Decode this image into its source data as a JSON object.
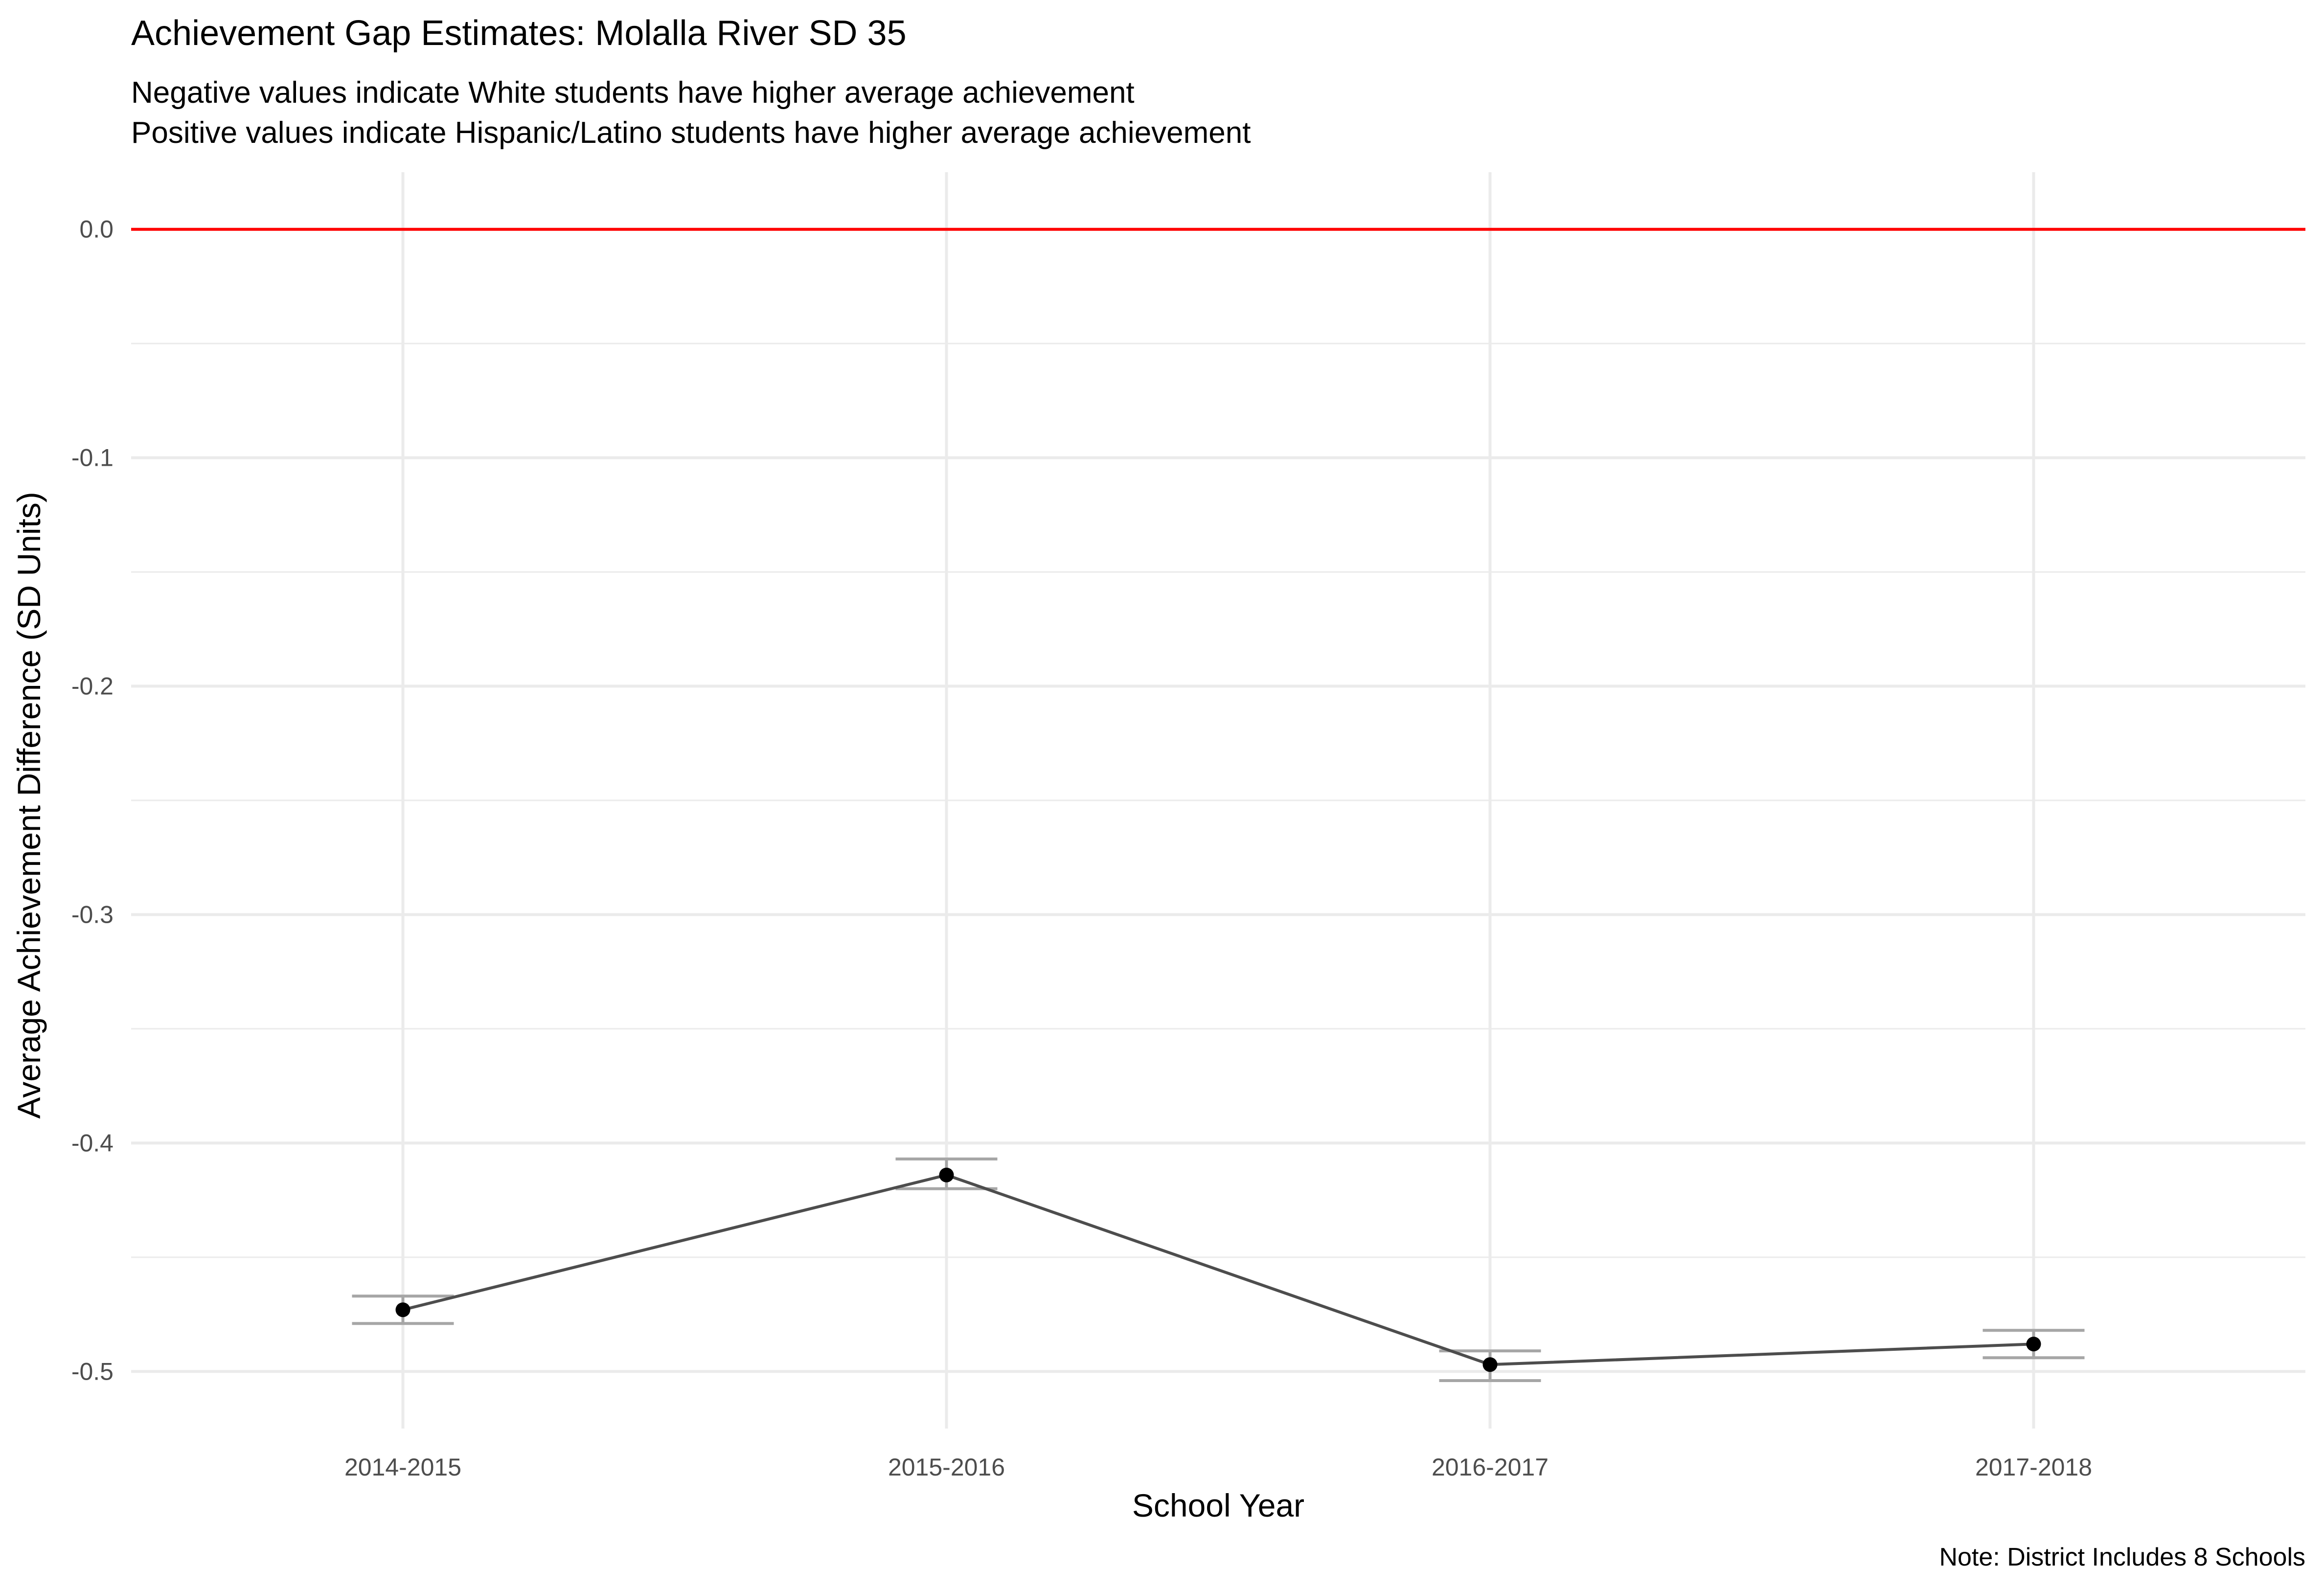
{
  "chart_data": {
    "type": "line",
    "title": "Achievement Gap Estimates: Molalla River SD 35",
    "subtitle_lines": [
      "Negative values indicate White students have higher average achievement",
      "Positive values indicate Hispanic/Latino students have higher average achievement"
    ],
    "xlabel": "School Year",
    "ylabel": "Average Achievement Difference (SD Units)",
    "caption": "Note: District Includes 8 Schools",
    "categories": [
      "2014-2015",
      "2015-2016",
      "2016-2017",
      "2017-2018"
    ],
    "values": [
      -0.473,
      -0.414,
      -0.497,
      -0.488
    ],
    "error_bars": [
      {
        "lower": -0.479,
        "upper": -0.467
      },
      {
        "lower": -0.42,
        "upper": -0.407
      },
      {
        "lower": -0.504,
        "upper": -0.491
      },
      {
        "lower": -0.494,
        "upper": -0.482
      }
    ],
    "reference_line": {
      "y": 0.0,
      "color": "#ff0000"
    },
    "yticks": [
      0.0,
      -0.1,
      -0.2,
      -0.3,
      -0.4,
      -0.5
    ],
    "ytick_labels": [
      "0.0",
      "-0.1",
      "-0.2",
      "-0.3",
      "-0.4",
      "-0.5"
    ],
    "ylim": [
      -0.525,
      0.025
    ],
    "grid": true,
    "colors": {
      "line": "#4d4d4d",
      "point": "#000000",
      "errorbar": "#a6a6a6",
      "grid": "#ebebeb"
    }
  }
}
